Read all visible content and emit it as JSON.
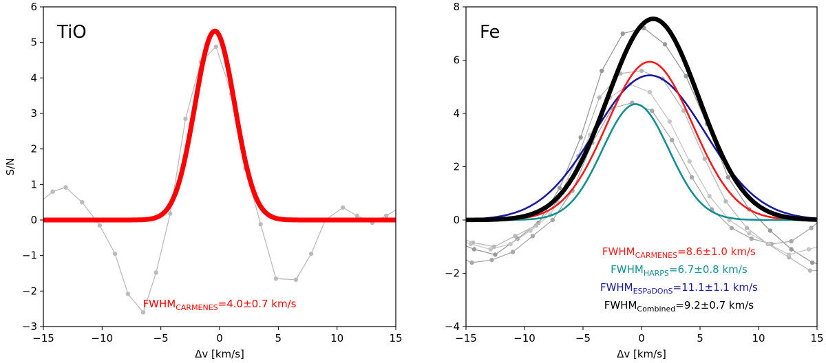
{
  "chart_data": [
    {
      "type": "line",
      "panel_label": "TiO",
      "xlabel": "Δv [km/s]",
      "ylabel": "S/N",
      "xlim": [
        -15,
        15
      ],
      "ylim": [
        -3,
        6
      ],
      "xticks": [
        "−15",
        "−10",
        "−5",
        "0",
        "5",
        "10",
        "15"
      ],
      "yticks": [
        "−3",
        "−2",
        "−1",
        "0",
        "1",
        "2",
        "3",
        "4",
        "5",
        "6"
      ],
      "grid": false,
      "data_series": [
        {
          "color": "#bbbbbb",
          "x": [
            -15.3,
            -14.2,
            -13.1,
            -11.7,
            -10.2,
            -8.9,
            -7.8,
            -6.5,
            -5.4,
            -4.2,
            -2.9,
            -1.6,
            -0.3,
            1.0,
            2.2,
            3.5,
            4.8,
            6.5,
            7.8,
            9.0,
            10.5,
            11.7,
            13.0,
            14.2,
            15.2
          ],
          "y": [
            0.5,
            0.8,
            0.92,
            0.5,
            -0.15,
            -0.95,
            -2.08,
            -2.6,
            -1.48,
            0.18,
            2.85,
            4.45,
            4.88,
            3.55,
            1.45,
            -0.12,
            -1.65,
            -1.68,
            -0.95,
            0.0,
            0.35,
            0.12,
            -0.08,
            0.12,
            0.32
          ]
        }
      ],
      "fits": [
        {
          "color": "#ff0000",
          "amplitude": 5.32,
          "center": -0.4,
          "fwhm": 4.0,
          "width": 7
        }
      ],
      "annotations": [
        {
          "color": "#ff0000",
          "prefix": "FWHM",
          "subscript": "CARMENES",
          "text": "=4.0±0.7 km/s"
        }
      ]
    },
    {
      "type": "line",
      "panel_label": "Fe",
      "xlabel": "Δv [km/s]",
      "ylabel": "",
      "xlim": [
        -15,
        15
      ],
      "ylim": [
        -4,
        8
      ],
      "xticks": [
        "−15",
        "−10",
        "−5",
        "0",
        "5",
        "10",
        "15"
      ],
      "yticks": [
        "−4",
        "−2",
        "0",
        "2",
        "4",
        "6",
        "8"
      ],
      "grid": false,
      "data_series": [
        {
          "color": "#999999",
          "x": [
            -16,
            -14.3,
            -12.5,
            -10.6,
            -8.8,
            -7.0,
            -5.2,
            -3.4,
            -1.6,
            0.2,
            2.0,
            3.8,
            5.6,
            7.4,
            9.2,
            11.0,
            12.8,
            14.6,
            15.8
          ],
          "y": [
            -0.8,
            -1.1,
            -1.3,
            -0.7,
            -0.1,
            1.2,
            3.1,
            5.6,
            7.0,
            7.2,
            6.6,
            5.4,
            3.6,
            1.6,
            0.4,
            -0.4,
            -1.1,
            -1.6,
            -1.7
          ]
        },
        {
          "color": "#b8b8b8",
          "x": [
            -16,
            -14.4,
            -12.6,
            -10.8,
            -9.0,
            -7.2,
            -5.4,
            -3.6,
            -1.8,
            0.0,
            1.8,
            3.6,
            5.4,
            7.2,
            9.0,
            10.8,
            12.6,
            14.4,
            15.8
          ],
          "y": [
            -0.6,
            -0.85,
            -1.0,
            -0.6,
            -0.2,
            0.7,
            2.4,
            4.6,
            5.5,
            5.6,
            5.3,
            4.1,
            2.3,
            0.7,
            -0.3,
            -0.9,
            -1.4,
            -1.9,
            -1.9
          ]
        },
        {
          "color": "#a8a8a8",
          "x": [
            -16,
            -14.5,
            -12.8,
            -11.0,
            -9.3,
            -7.6,
            -5.9,
            -4.2,
            -2.5,
            -0.8,
            0.9,
            2.6,
            4.3,
            6.0,
            7.7,
            9.4,
            11.1,
            12.8,
            14.5,
            15.8
          ],
          "y": [
            -1.3,
            -1.6,
            -1.5,
            -1.2,
            -0.6,
            0.0,
            1.1,
            2.9,
            4.2,
            4.4,
            4.1,
            3.0,
            1.6,
            0.4,
            -0.3,
            -0.7,
            -0.9,
            -0.8,
            -0.3,
            0.2
          ]
        },
        {
          "color": "#c6c6c6",
          "x": [
            -16,
            -14.6,
            -12.9,
            -11.2,
            -9.5,
            -7.8,
            -6.1,
            -4.4,
            -2.7,
            -1.0,
            0.7,
            2.4,
            4.1,
            5.8,
            7.5,
            9.2,
            10.9,
            12.6,
            14.3,
            15.8
          ],
          "y": [
            -0.7,
            -0.9,
            -1.1,
            -0.9,
            -0.4,
            0.2,
            1.5,
            3.2,
            4.6,
            5.1,
            4.8,
            3.7,
            2.2,
            0.9,
            0.0,
            -0.5,
            -0.9,
            -1.3,
            -1.1,
            -0.9
          ]
        }
      ],
      "fits": [
        {
          "color": "#1a1aa0",
          "amplitude": 5.43,
          "center": 0.7,
          "fwhm": 11.1,
          "width": 2.6
        },
        {
          "color": "#ff1a1a",
          "amplitude": 5.94,
          "center": 0.7,
          "fwhm": 8.6,
          "width": 2.6
        },
        {
          "color": "#128f8f",
          "amplitude": 4.35,
          "center": -0.5,
          "fwhm": 6.7,
          "width": 2.6
        },
        {
          "color": "#000000",
          "amplitude": 7.55,
          "center": 1.0,
          "fwhm": 9.2,
          "width": 6.5
        }
      ],
      "annotations": [
        {
          "color": "#ff1a1a",
          "prefix": "FWHM",
          "subscript": "CARMENES",
          "text": "=8.6±1.0 km/s"
        },
        {
          "color": "#128f8f",
          "prefix": "FWHM",
          "subscript": "HARPS",
          "text": "=6.7±0.8 km/s"
        },
        {
          "color": "#1a1aa0",
          "prefix": "FWHM",
          "subscript": "ESPaDOnS",
          "text": "=11.1±1.1 km/s"
        },
        {
          "color": "#000000",
          "prefix": "FWHM",
          "subscript": "Combined",
          "text": "=9.2±0.7 km/s"
        }
      ]
    }
  ]
}
